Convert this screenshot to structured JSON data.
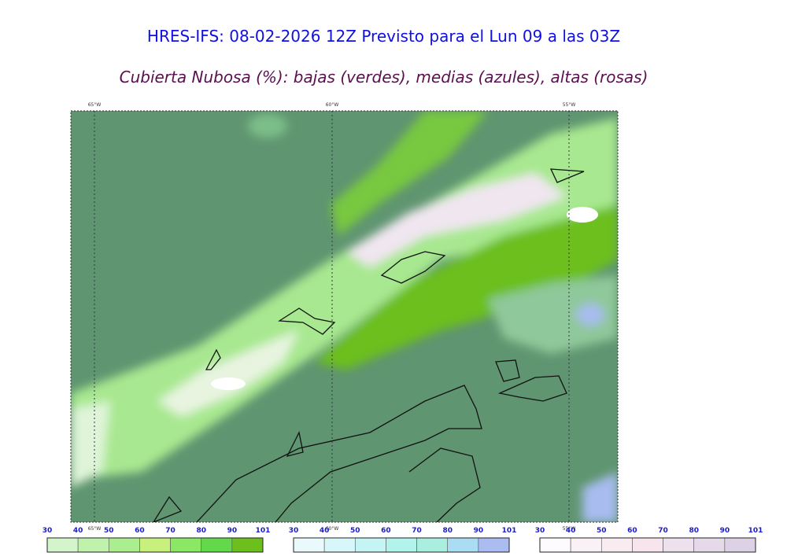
{
  "title": "HRES-IFS: 08-02-2026 12Z Previsto para el Lun 09 a las 03Z",
  "subtitle": "Cubierta Nubosa (%): bajas (verdes), medias (azules), altas (rosas)",
  "longitude_labels": [
    "65°W",
    "60°W",
    "55°W"
  ],
  "colorbars": [
    {
      "ticks": [
        30,
        40,
        50,
        60,
        70,
        80,
        90,
        101
      ],
      "colors": [
        "#d4f5cc",
        "#bff2ac",
        "#abee90",
        "#c8f07c",
        "#8ae864",
        "#62d84a",
        "#6cbf1c"
      ]
    },
    {
      "ticks": [
        30,
        40,
        50,
        60,
        70,
        80,
        90,
        101
      ],
      "colors": [
        "#eafafc",
        "#d8f7fa",
        "#c4f5f4",
        "#b2f4ec",
        "#aaeee0",
        "#aadcf4",
        "#aabcf0"
      ]
    },
    {
      "ticks": [
        30,
        40,
        50,
        60,
        70,
        80,
        90,
        101
      ],
      "colors": [
        "#fdfbfd",
        "#f9f1f5",
        "#f9ecf1",
        "#f8e4ec",
        "#eee1ee",
        "#e5d9ea",
        "#ddd1e6"
      ]
    }
  ]
}
